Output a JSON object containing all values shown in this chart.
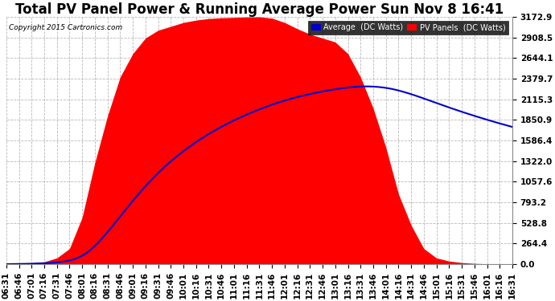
{
  "title": "Total PV Panel Power & Running Average Power Sun Nov 8 16:41",
  "copyright": "Copyright 2015 Cartronics.com",
  "ylabel_values": [
    0.0,
    264.4,
    528.8,
    793.2,
    1057.6,
    1322.0,
    1586.4,
    1850.9,
    2115.3,
    2379.7,
    2644.1,
    2908.5,
    3172.9
  ],
  "ymax": 3172.9,
  "background_color": "#ffffff",
  "plot_bg_color": "#ffffff",
  "grid_color": "#b0b0b0",
  "fill_color": "#ff0000",
  "avg_line_color": "#0000cc",
  "legend_avg_bg": "#0000cc",
  "legend_pv_bg": "#ff0000",
  "title_fontsize": 12,
  "tick_fontsize": 7.5,
  "x_tick_labels": [
    "06:31",
    "06:46",
    "07:01",
    "07:16",
    "07:31",
    "07:46",
    "08:01",
    "08:16",
    "08:31",
    "08:46",
    "09:01",
    "09:16",
    "09:31",
    "09:46",
    "10:01",
    "10:16",
    "10:31",
    "10:46",
    "11:01",
    "11:16",
    "11:31",
    "11:46",
    "12:01",
    "12:16",
    "12:31",
    "12:46",
    "13:01",
    "13:16",
    "13:31",
    "13:46",
    "14:01",
    "14:16",
    "14:31",
    "14:46",
    "15:01",
    "15:16",
    "15:31",
    "15:46",
    "16:01",
    "16:16",
    "16:31"
  ],
  "pv_keypoints_idx": [
    0,
    1,
    2,
    3,
    4,
    5,
    6,
    7,
    8,
    9,
    10,
    11,
    12,
    13,
    14,
    15,
    16,
    17,
    18,
    19,
    20,
    21,
    22,
    23,
    24,
    25,
    26,
    27,
    28,
    29,
    30,
    31,
    32,
    33,
    34,
    35,
    36,
    37,
    38,
    39,
    40
  ],
  "pv_keypoints_val": [
    0,
    5,
    15,
    30,
    80,
    200,
    600,
    1300,
    1900,
    2400,
    2700,
    2900,
    3000,
    3050,
    3100,
    3130,
    3150,
    3160,
    3165,
    3170,
    3172,
    3155,
    3100,
    3020,
    2950,
    2900,
    2850,
    2700,
    2400,
    2000,
    1500,
    900,
    500,
    200,
    80,
    40,
    20,
    10,
    5,
    2,
    0
  ],
  "avg_peak_idx": 27,
  "avg_peak_val": 2280
}
